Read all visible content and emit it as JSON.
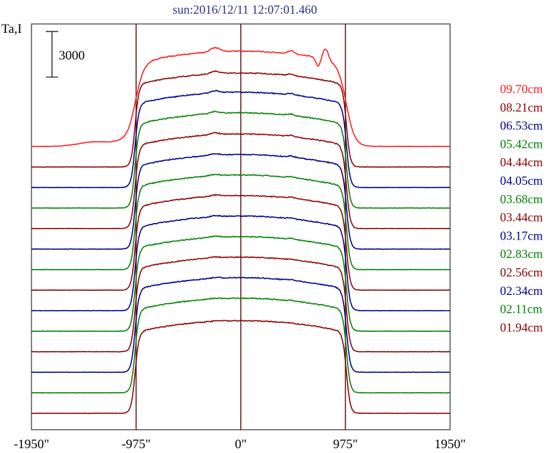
{
  "chart_data": {
    "type": "line",
    "title": "sun:2016/12/11 12:07:01.460",
    "ylabel": "Ta,I",
    "scale_bar": {
      "label": "3000",
      "value": 3000
    },
    "x_ticks": [
      {
        "value": -1950,
        "label": "-1950\""
      },
      {
        "value": -975,
        "label": "-975\""
      },
      {
        "value": 0,
        "label": "0\""
      },
      {
        "value": 975,
        "label": "975\""
      },
      {
        "value": 1950,
        "label": "1950\""
      }
    ],
    "xlim": [
      -1950,
      1950
    ],
    "vlines": [
      -975,
      0,
      975
    ],
    "series": [
      {
        "name": "09.70cm",
        "color": "#ff1a1a",
        "peak": 14400,
        "bump": 1.0
      },
      {
        "name": "08.21cm",
        "color": "#8b0000",
        "peak": 14200,
        "bump": 0.55
      },
      {
        "name": "06.53cm",
        "color": "#00008b",
        "peak": 14400,
        "bump": 0.5
      },
      {
        "name": "05.42cm",
        "color": "#008000",
        "peak": 14400,
        "bump": 0.45
      },
      {
        "name": "04.44cm",
        "color": "#8b0000",
        "peak": 14300,
        "bump": 0.4
      },
      {
        "name": "04.05cm",
        "color": "#00008b",
        "peak": 14300,
        "bump": 0.35
      },
      {
        "name": "03.68cm",
        "color": "#008000",
        "peak": 14300,
        "bump": 0.3
      },
      {
        "name": "03.44cm",
        "color": "#8b0000",
        "peak": 14300,
        "bump": 0.3
      },
      {
        "name": "03.17cm",
        "color": "#00008b",
        "peak": 14300,
        "bump": 0.25
      },
      {
        "name": "02.83cm",
        "color": "#008000",
        "peak": 14300,
        "bump": 0.25
      },
      {
        "name": "02.56cm",
        "color": "#8b0000",
        "peak": 14300,
        "bump": 0.2
      },
      {
        "name": "02.34cm",
        "color": "#00008b",
        "peak": 14300,
        "bump": 0.2
      },
      {
        "name": "02.11cm",
        "color": "#008000",
        "peak": 14300,
        "bump": 0.15
      },
      {
        "name": "01.94cm",
        "color": "#8b0000",
        "peak": 14000,
        "bump": 0.1
      }
    ],
    "grid": false,
    "legend_position": "right"
  }
}
